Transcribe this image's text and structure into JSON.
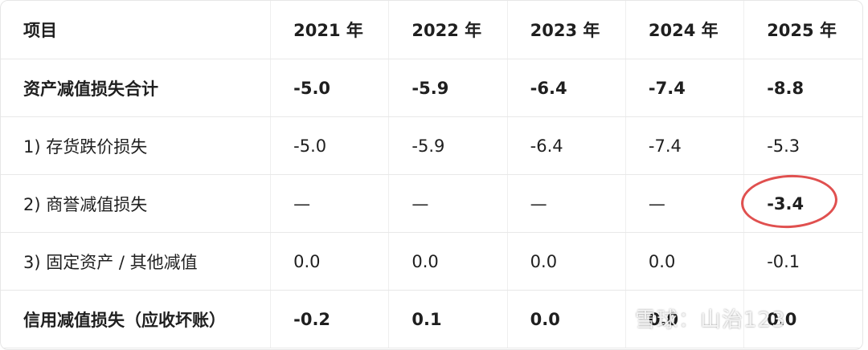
{
  "table": {
    "header": [
      "项目",
      "2021 年",
      "2022 年",
      "2023 年",
      "2024 年",
      "2025 年"
    ],
    "rows": [
      [
        "资产减值损失合计",
        "-5.0",
        "-5.9",
        "-6.4",
        "-7.4",
        "-8.8"
      ],
      [
        "1) 存货跌价损失",
        "-5.0",
        "-5.9",
        "-6.4",
        "-7.4",
        "-5.3"
      ],
      [
        "2) 商誉减值损失",
        "—",
        "—",
        "—",
        "—",
        "-3.4"
      ],
      [
        "3) 固定资产 / 其他减值",
        "0.0",
        "0.0",
        "0.0",
        "0.0",
        "-0.1"
      ],
      [
        "信用减值损失（应收坏账）",
        "-0.2",
        "0.1",
        "0.0",
        "0.0",
        "0.0"
      ]
    ]
  },
  "watermark": "雪球：山治123"
}
